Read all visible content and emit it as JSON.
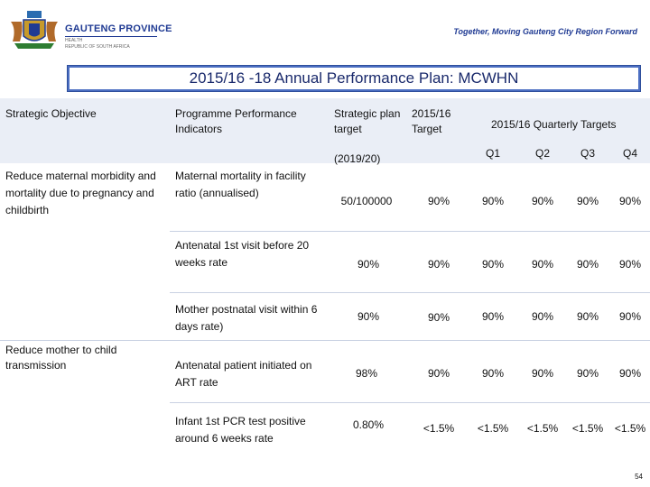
{
  "header": {
    "brand": "GAUTENG PROVINCE",
    "department": "HEALTH",
    "country": "REPUBLIC OF SOUTH AFRICA",
    "tagline": "Together, Moving Gauteng City Region Forward"
  },
  "title": "2015/16 -18 Annual Performance Plan: MCWHN",
  "columns": {
    "objective": "Strategic Objective",
    "indicator": "Programme Performance Indicators",
    "plan_target": "Strategic plan target",
    "plan_year": "(2019/20)",
    "annual_target": "2015/16 Target",
    "quarterly": "2015/16 Quarterly Targets",
    "q1": "Q1",
    "q2": "Q2",
    "q3": "Q3",
    "q4": "Q4"
  },
  "objectives": [
    "Reduce maternal morbidity and mortality due to pregnancy and childbirth",
    "Reduce mother to child transmission"
  ],
  "rows": [
    {
      "indicator": "Maternal mortality in facility ratio (annualised)",
      "plan": "50/100000",
      "target": "90%",
      "q1": "90%",
      "q2": "90%",
      "q3": "90%",
      "q4": "90%"
    },
    {
      "indicator": "Antenatal 1st visit before 20 weeks rate",
      "plan": "90%",
      "target": "90%",
      "q1": "90%",
      "q2": "90%",
      "q3": "90%",
      "q4": "90%"
    },
    {
      "indicator": "Mother postnatal visit within 6 days rate)",
      "plan": "90%",
      "target": "90%",
      "q1": "90%",
      "q2": "90%",
      "q3": "90%",
      "q4": "90%"
    },
    {
      "indicator": "Antenatal patient initiated on ART rate",
      "plan": "98%",
      "target": "90%",
      "q1": "90%",
      "q2": "90%",
      "q3": "90%",
      "q4": "90%"
    },
    {
      "indicator": "Infant 1st PCR test positive around 6 weeks rate",
      "plan": "0.80%",
      "target": "<1.5%",
      "q1": "<1.5%",
      "q2": "<1.5%",
      "q3": "<1.5%",
      "q4": "<1.5%"
    }
  ],
  "page_number": "54"
}
